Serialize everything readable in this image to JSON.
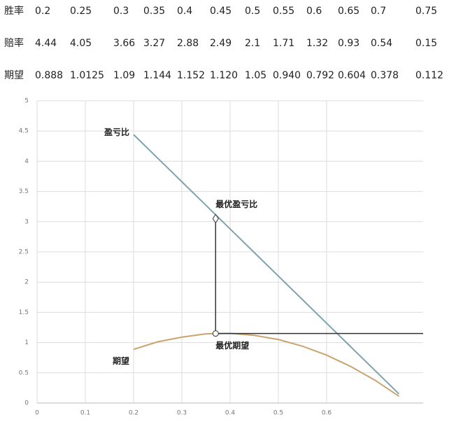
{
  "table": {
    "rows": [
      [
        "胜率",
        "0.2",
        "0.25",
        "0.3",
        "0.35",
        "0.4",
        "0.45",
        "0.5",
        "0.55",
        "0.6",
        "0.65",
        "0.7",
        "0.75"
      ],
      [
        "赔率",
        "4.44",
        "4.05",
        "3.66",
        "3.27",
        "2.88",
        "2.49",
        "2.1",
        "1.71",
        "1.32",
        "0.93",
        "0.54",
        "0.15"
      ],
      [
        "期望",
        "0.888",
        "1.0125",
        "1.09",
        "1.144",
        "1.152",
        "1.120",
        "1.05",
        "0.940",
        "0.792",
        "0.604",
        "0.378",
        "0.112"
      ]
    ]
  },
  "chart_data": {
    "type": "line",
    "x": [
      0.2,
      0.25,
      0.3,
      0.35,
      0.4,
      0.45,
      0.5,
      0.55,
      0.6,
      0.65,
      0.7,
      0.75
    ],
    "series": [
      {
        "name": "盈亏比",
        "color": "#7fa3ad",
        "values": [
          4.44,
          4.05,
          3.66,
          3.27,
          2.88,
          2.49,
          2.1,
          1.71,
          1.32,
          0.93,
          0.54,
          0.15
        ]
      },
      {
        "name": "期望",
        "color": "#c9a46e",
        "values": [
          0.888,
          1.0125,
          1.09,
          1.144,
          1.152,
          1.12,
          1.05,
          0.94,
          0.792,
          0.604,
          0.378,
          0.112
        ]
      }
    ],
    "annotations": [
      {
        "text": "最优盈亏比",
        "x": 0.37,
        "y": 3.05,
        "marker": "diamond"
      },
      {
        "text": "最优期望",
        "x": 0.37,
        "y": 1.15,
        "marker": "circle"
      }
    ],
    "xlim": [
      0,
      0.8
    ],
    "xticks": [
      0,
      0.1,
      0.2,
      0.3,
      0.4,
      0.5,
      0.6
    ],
    "ylim": [
      0,
      5
    ],
    "yticks": [
      0,
      0.5,
      1,
      1.5,
      2,
      2.5,
      3,
      3.5,
      4,
      4.5,
      5
    ],
    "grid": true
  }
}
